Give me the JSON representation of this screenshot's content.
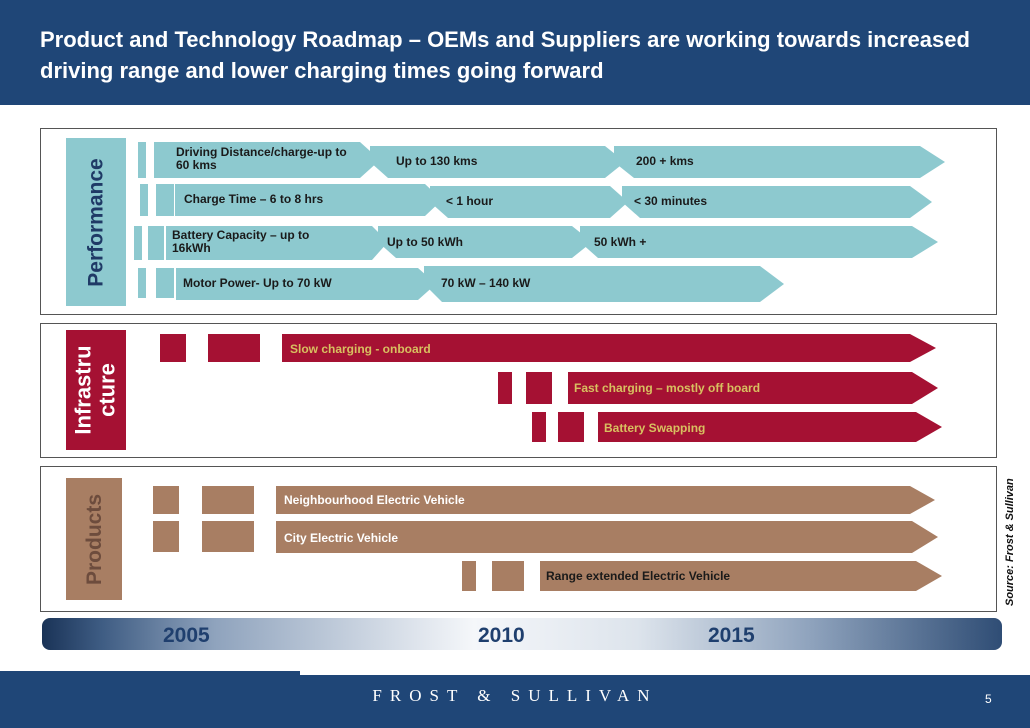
{
  "header": {
    "title": "Product and Technology Roadmap – OEMs and Suppliers are working towards increased driving range and lower charging times going forward"
  },
  "sections": {
    "performance": {
      "label": "Performance",
      "rows": [
        {
          "segments": [
            "Driving Distance/charge-up to 60 kms",
            "Up to 130 kms",
            "200 +  kms"
          ]
        },
        {
          "segments": [
            "Charge Time – 6 to 8 hrs",
            "< 1 hour",
            "< 30 minutes"
          ]
        },
        {
          "segments": [
            "Battery Capacity – up to 16kWh",
            "Up to 50 kWh",
            "50 kWh +"
          ]
        },
        {
          "segments": [
            "Motor Power- Up to 70 kW",
            "70 kW – 140 kW"
          ]
        }
      ]
    },
    "infrastructure": {
      "label": "Infrastru cture",
      "rows": [
        {
          "segments": [
            "Slow charging - onboard"
          ]
        },
        {
          "segments": [
            "Fast charging – mostly off board"
          ]
        },
        {
          "segments": [
            "Battery Swapping"
          ]
        }
      ]
    },
    "products": {
      "label": "Products",
      "rows": [
        {
          "segments": [
            "Neighbourhood Electric Vehicle"
          ]
        },
        {
          "segments": [
            "City Electric Vehicle"
          ]
        },
        {
          "segments": [
            "Range extended Electric Vehicle"
          ]
        }
      ]
    }
  },
  "source": "Source: Frost & Sullivan",
  "timeline": {
    "years": [
      "2005",
      "2010",
      "2015"
    ]
  },
  "footer": {
    "logo": "FROST & SULLIVAN",
    "page": "5"
  },
  "colors": {
    "header_bg": "#1f4677",
    "performance_fill": "#8dc9cf",
    "performance_label": "#1f3a66",
    "infrastructure_fill": "#a51133",
    "infrastructure_label": "#a51133",
    "products_fill": "#a87e63",
    "products_label": "#6d4c3d",
    "timeline_year": "#1f3f6e"
  }
}
